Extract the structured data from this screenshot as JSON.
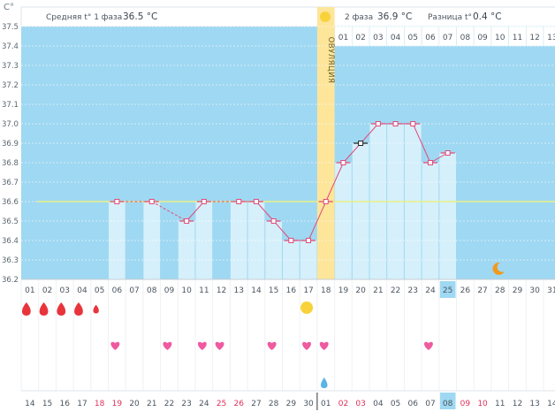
{
  "header": {
    "phase1_label": "Средняя t° 1 фаза",
    "phase1_value": "36.5 °C",
    "phase2_label": "2 фаза",
    "phase2_value": "36.9 °C",
    "diff_label": "Разница t°",
    "diff_value": "0.4 °C"
  },
  "ovulation_label": "ОВУЛЯЦИЯ",
  "colors": {
    "plot_bg": "#9fd8f2",
    "bar_fill": "#d5f0fb",
    "line": "#e14b7a",
    "ovulation": "#fde59a",
    "coverline": "#e9ef84",
    "heart": "#ef5aa0",
    "blood": "#e8343b",
    "water": "#5ab4e6",
    "sun": "#f8d23a",
    "moon": "#f29a1e",
    "today": "#9fd8f2"
  },
  "chart_data": {
    "type": "bar",
    "ylabel": "C°",
    "y_ticks": [
      "36.2",
      "36.3",
      "36.4",
      "36.5",
      "36.6",
      "36.7",
      "36.8",
      "36.9",
      "37.0",
      "37.1",
      "37.2",
      "37.3",
      "37.4",
      "37.5"
    ],
    "ylim": [
      36.2,
      37.5
    ],
    "coverline": 36.6,
    "cycle_days": [
      "01",
      "02",
      "03",
      "04",
      "05",
      "06",
      "07",
      "08",
      "09",
      "10",
      "11",
      "12",
      "13",
      "14",
      "15",
      "16",
      "17",
      "18",
      "19",
      "20",
      "21",
      "22",
      "23",
      "24",
      "25",
      "26",
      "27",
      "28",
      "29",
      "30",
      "31"
    ],
    "phase2_days": [
      "01",
      "02",
      "03",
      "04",
      "05",
      "06",
      "07",
      "08",
      "09",
      "10",
      "11",
      "12",
      "13"
    ],
    "calendar_dates": [
      "14",
      "15",
      "16",
      "17",
      "18",
      "19",
      "20",
      "21",
      "22",
      "23",
      "24",
      "25",
      "26",
      "27",
      "28",
      "29",
      "30",
      "01",
      "02",
      "03",
      "04",
      "05",
      "06",
      "07",
      "08",
      "09",
      "10",
      "11",
      "12",
      "13",
      "14"
    ],
    "red_dates": [
      4,
      5,
      11,
      12,
      18,
      19,
      25,
      26
    ],
    "today_index": 24,
    "temperatures": [
      null,
      null,
      null,
      null,
      null,
      36.6,
      null,
      36.6,
      null,
      36.5,
      36.6,
      null,
      36.6,
      36.6,
      36.5,
      36.4,
      36.4,
      36.6,
      36.8,
      36.9,
      37.0,
      37.0,
      37.0,
      36.8,
      36.85,
      null,
      null,
      null,
      null,
      null,
      null
    ],
    "excluded_index": 19,
    "ovulation_index": 17,
    "blood_days": [
      0,
      1,
      2,
      3,
      4
    ],
    "heart_days": [
      5,
      8,
      10,
      11,
      14,
      16,
      17,
      23
    ],
    "sun_days": [
      16
    ],
    "water_days": [
      17
    ],
    "moon_days": [
      27
    ]
  }
}
